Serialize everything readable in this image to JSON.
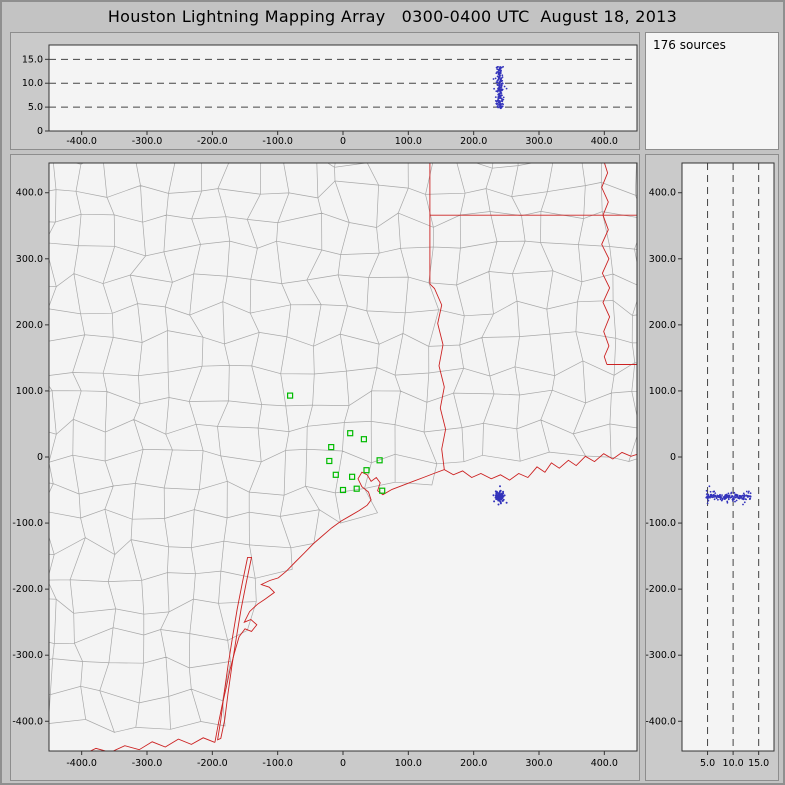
{
  "window": {
    "title": "Houston Lightning Mapping Array   0300-0400 UTC  August 18, 2013"
  },
  "stats": {
    "sources_label": "176 sources"
  },
  "colors": {
    "window_bg": "#c3c3c3",
    "panel_bg": "#cacaca",
    "plot_bg": "#f4f4f4",
    "plot_border": "#333333",
    "grid_dash": "#444444",
    "county": "#a9a9a9",
    "state": "#cc2222",
    "station": "#00bb00",
    "source": "#3333bb",
    "text": "#000000"
  },
  "sources": {
    "count": 176,
    "ew_km": 240,
    "ns_km": -60,
    "sigma_km": 4,
    "alt_min_km": 4.5,
    "alt_max_km": 13.5,
    "seed": 42
  },
  "chart_data": [
    {
      "id": "altitude_vs_east_west",
      "type": "scatter",
      "title": "",
      "xlabel": "",
      "ylabel": "",
      "xlim": [
        -450,
        450
      ],
      "ylim": [
        0,
        18
      ],
      "hlines_dashed": [
        5,
        10,
        15
      ],
      "x_ticks": [
        {
          "v": -400,
          "label": "-400.0"
        },
        {
          "v": -300,
          "label": "-300.0"
        },
        {
          "v": -200,
          "label": "-200.0"
        },
        {
          "v": -100,
          "label": "-100.0"
        },
        {
          "v": 0,
          "label": "0"
        },
        {
          "v": 100,
          "label": "100.0"
        },
        {
          "v": 200,
          "label": "200.0"
        },
        {
          "v": 300,
          "label": "300.0"
        },
        {
          "v": 400,
          "label": "400.0"
        }
      ],
      "y_ticks": [
        {
          "v": 15,
          "label": "15.0"
        },
        {
          "v": 10,
          "label": "10.0"
        },
        {
          "v": 5,
          "label": "5.0"
        },
        {
          "v": 0,
          "label": "0"
        }
      ],
      "cluster": {
        "x_center_km": 240,
        "x_spread_km": 8,
        "alt_range_km": [
          4.5,
          13.5
        ]
      }
    },
    {
      "id": "plan_view_map",
      "type": "scatter",
      "title": "",
      "xlabel": "",
      "ylabel": "",
      "xlim": [
        -450,
        450
      ],
      "ylim": [
        -445,
        445
      ],
      "x_ticks": [
        {
          "v": -400,
          "label": "-400.0"
        },
        {
          "v": -300,
          "label": "-300.0"
        },
        {
          "v": -200,
          "label": "-200.0"
        },
        {
          "v": -100,
          "label": "-100.0"
        },
        {
          "v": 0,
          "label": "0"
        },
        {
          "v": 100,
          "label": "100.0"
        },
        {
          "v": 200,
          "label": "200.0"
        },
        {
          "v": 300,
          "label": "300.0"
        },
        {
          "v": 400,
          "label": "400.0"
        }
      ],
      "y_ticks": [
        {
          "v": 400,
          "label": "400.0"
        },
        {
          "v": 300,
          "label": "300.0"
        },
        {
          "v": 200,
          "label": "200.0"
        },
        {
          "v": 100,
          "label": "100.0"
        },
        {
          "v": 0,
          "label": "0"
        },
        {
          "v": -100,
          "label": "-100.0"
        },
        {
          "v": -200,
          "label": "-200.0"
        },
        {
          "v": -300,
          "label": "-300.0"
        },
        {
          "v": -400,
          "label": "-400.0"
        }
      ],
      "cluster": {
        "x_center_km": 240,
        "y_center_km": -60,
        "spread_km": 8
      },
      "stations_km": [
        [
          -81,
          93
        ],
        [
          11,
          36
        ],
        [
          -18,
          15
        ],
        [
          32,
          27
        ],
        [
          -21,
          -6
        ],
        [
          -11,
          -27
        ],
        [
          14,
          -30
        ],
        [
          36,
          -20
        ],
        [
          56,
          -5
        ],
        [
          21,
          -48
        ],
        [
          0,
          -50
        ],
        [
          60,
          -51
        ]
      ],
      "county_texture": {
        "cell_km": 45,
        "jitter_km": 13
      },
      "geo": {
        "land_envelope": [
          [
            -460,
            -430
          ],
          [
            -196,
            -430
          ],
          [
            -168,
            -300
          ],
          [
            -148,
            -258
          ],
          [
            -118,
            -215
          ],
          [
            -86,
            -175
          ],
          [
            -44,
            -132
          ],
          [
            0,
            -97
          ],
          [
            38,
            -72
          ],
          [
            60,
            -50
          ],
          [
            100,
            -38
          ],
          [
            155,
            -20
          ],
          [
            220,
            -28
          ],
          [
            300,
            -18
          ],
          [
            380,
            -6
          ],
          [
            460,
            0
          ]
        ],
        "coast": [
          [
            -196,
            -432
          ],
          [
            -191,
            -405
          ],
          [
            -185,
            -376
          ],
          [
            -179,
            -350
          ],
          [
            -173,
            -322
          ],
          [
            -166,
            -296
          ],
          [
            -159,
            -272
          ],
          [
            -150,
            -260
          ],
          [
            -140,
            -264
          ],
          [
            -132,
            -254
          ],
          [
            -141,
            -246
          ],
          [
            -151,
            -250
          ],
          [
            -143,
            -234
          ],
          [
            -131,
            -223
          ],
          [
            -119,
            -215
          ],
          [
            -105,
            -205
          ],
          [
            -113,
            -197
          ],
          [
            -125,
            -193
          ],
          [
            -112,
            -187
          ],
          [
            -99,
            -183
          ],
          [
            -87,
            -173
          ],
          [
            -73,
            -159
          ],
          [
            -59,
            -145
          ],
          [
            -45,
            -131
          ],
          [
            -31,
            -119
          ],
          [
            -17,
            -107
          ],
          [
            -3,
            -97
          ],
          [
            11,
            -89
          ],
          [
            25,
            -81
          ],
          [
            37,
            -73
          ],
          [
            43,
            -65
          ],
          [
            39,
            -53
          ],
          [
            29,
            -45
          ],
          [
            23,
            -33
          ],
          [
            29,
            -23
          ],
          [
            37,
            -27
          ],
          [
            43,
            -37
          ],
          [
            51,
            -31
          ],
          [
            57,
            -39
          ],
          [
            53,
            -51
          ],
          [
            61,
            -57
          ],
          [
            75,
            -49
          ],
          [
            91,
            -43
          ],
          [
            107,
            -37
          ],
          [
            123,
            -31
          ],
          [
            139,
            -25
          ],
          [
            155,
            -19
          ],
          [
            169,
            -27
          ],
          [
            183,
            -21
          ],
          [
            197,
            -31
          ],
          [
            211,
            -25
          ],
          [
            227,
            -33
          ],
          [
            241,
            -27
          ],
          [
            255,
            -35
          ],
          [
            269,
            -25
          ],
          [
            283,
            -31
          ],
          [
            297,
            -15
          ],
          [
            309,
            -23
          ],
          [
            319,
            -9
          ],
          [
            331,
            -17
          ],
          [
            345,
            -5
          ],
          [
            357,
            -13
          ],
          [
            371,
            1
          ],
          [
            385,
            -7
          ],
          [
            399,
            5
          ],
          [
            413,
            -3
          ],
          [
            427,
            7
          ],
          [
            441,
            1
          ],
          [
            453,
            5
          ]
        ],
        "island_inner": [
          [
            -146,
            -152
          ],
          [
            -154,
            -190
          ],
          [
            -162,
            -230
          ],
          [
            -169,
            -272
          ],
          [
            -176,
            -316
          ],
          [
            -182,
            -358
          ],
          [
            -187,
            -398
          ],
          [
            -192,
            -428
          ]
        ],
        "island_outer": [
          [
            -140,
            -152
          ],
          [
            -148,
            -190
          ],
          [
            -156,
            -230
          ],
          [
            -163,
            -272
          ],
          [
            -170,
            -316
          ],
          [
            -176,
            -358
          ],
          [
            -181,
            -398
          ],
          [
            -187,
            -426
          ]
        ],
        "rio_grande": [
          [
            -196,
            -432
          ],
          [
            -214,
            -425
          ],
          [
            -232,
            -435
          ],
          [
            -252,
            -427
          ],
          [
            -272,
            -439
          ],
          [
            -292,
            -431
          ],
          [
            -312,
            -443
          ],
          [
            -334,
            -437
          ],
          [
            -356,
            -447
          ],
          [
            -378,
            -441
          ],
          [
            -400,
            -451
          ],
          [
            -422,
            -447
          ],
          [
            -444,
            -453
          ]
        ],
        "state_lines": [
          [
            [
              155,
              -19
            ],
            [
              151,
              12
            ],
            [
              157,
              42
            ],
            [
              149,
              74
            ],
            [
              155,
              106
            ],
            [
              147,
              138
            ],
            [
              153,
              170
            ],
            [
              145,
              202
            ],
            [
              151,
              230
            ],
            [
              140,
              255
            ],
            [
              133,
              262
            ]
          ],
          [
            [
              133,
              262
            ],
            [
              133,
              452
            ]
          ],
          [
            [
              133,
              366
            ],
            [
              452,
              366
            ]
          ],
          [
            [
              398,
              452
            ],
            [
              405,
              430
            ],
            [
              396,
              408
            ],
            [
              406,
              386
            ],
            [
              398,
              366
            ],
            [
              406,
              344
            ],
            [
              396,
              322
            ],
            [
              407,
              300
            ],
            [
              397,
              278
            ],
            [
              408,
              256
            ],
            [
              398,
              234
            ],
            [
              408,
              212
            ],
            [
              399,
              190
            ],
            [
              407,
              168
            ],
            [
              400,
              152
            ],
            [
              404,
              140
            ]
          ],
          [
            [
              404,
              140
            ],
            [
              452,
              140
            ]
          ]
        ]
      }
    },
    {
      "id": "altitude_vs_north_south",
      "type": "scatter",
      "title": "",
      "xlabel": "",
      "ylabel": "",
      "xlim": [
        0,
        18
      ],
      "ylim": [
        -445,
        445
      ],
      "vlines_dashed": [
        5,
        10,
        15
      ],
      "x_ticks": [
        {
          "v": 5,
          "label": "5.0"
        },
        {
          "v": 10,
          "label": "10.0"
        },
        {
          "v": 15,
          "label": "15.0"
        }
      ],
      "y_ticks": [
        {
          "v": 400,
          "label": "400.0"
        },
        {
          "v": 300,
          "label": "300.0"
        },
        {
          "v": 200,
          "label": "200.0"
        },
        {
          "v": 100,
          "label": "100.0"
        },
        {
          "v": 0,
          "label": "0"
        },
        {
          "v": -100,
          "label": "-100.0"
        },
        {
          "v": -200,
          "label": "-200.0"
        },
        {
          "v": -300,
          "label": "-300.0"
        },
        {
          "v": -400,
          "label": "-400.0"
        }
      ],
      "cluster": {
        "y_center_km": -60,
        "alt_range_km": [
          4.5,
          13.5
        ]
      }
    }
  ]
}
